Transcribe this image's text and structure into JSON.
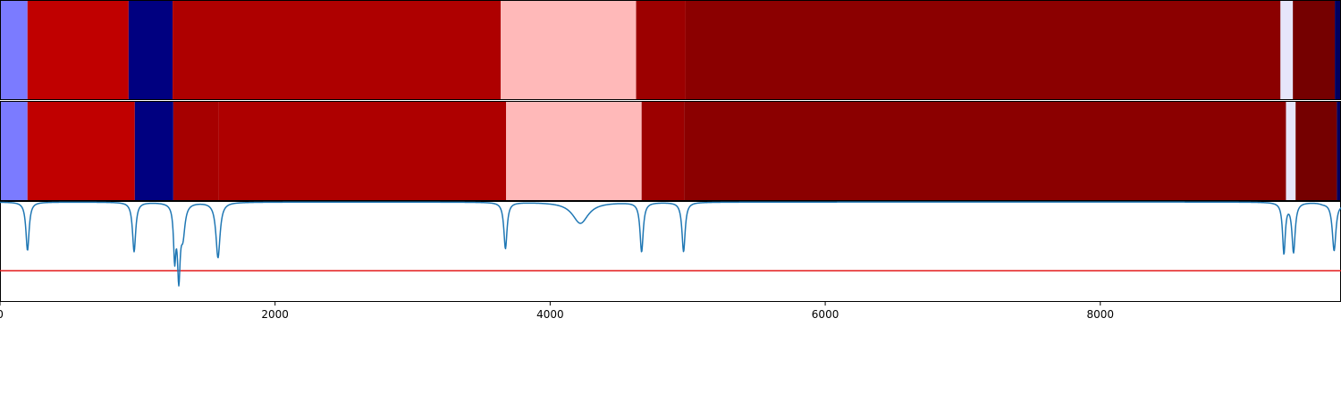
{
  "chart_data": {
    "type": "segmentation",
    "xlim": [
      0,
      9750
    ],
    "xticks": [
      0,
      2000,
      4000,
      6000,
      8000
    ],
    "xtick_labels": [
      "0",
      "2000",
      "4000",
      "6000",
      "8000"
    ],
    "panels": [
      {
        "type": "heatmap",
        "segments": [
          {
            "start": 0,
            "end": 200,
            "color": "#7b7bff"
          },
          {
            "start": 200,
            "end": 935,
            "color": "#c00000"
          },
          {
            "start": 935,
            "end": 1255,
            "color": "#000080"
          },
          {
            "start": 1255,
            "end": 3640,
            "color": "#ae0000"
          },
          {
            "start": 3640,
            "end": 4625,
            "color": "#ffb9b9"
          },
          {
            "start": 4625,
            "end": 4985,
            "color": "#9c0000"
          },
          {
            "start": 4985,
            "end": 9310,
            "color": "#8b0000"
          },
          {
            "start": 9310,
            "end": 9400,
            "color": "#e6e6fa"
          },
          {
            "start": 9400,
            "end": 9705,
            "color": "#750000"
          },
          {
            "start": 9705,
            "end": 9750,
            "color": "#000060"
          }
        ]
      },
      {
        "type": "heatmap",
        "segments": [
          {
            "start": 0,
            "end": 200,
            "color": "#7b7bff"
          },
          {
            "start": 200,
            "end": 980,
            "color": "#c00000"
          },
          {
            "start": 980,
            "end": 1260,
            "color": "#000080"
          },
          {
            "start": 1260,
            "end": 1590,
            "color": "#a60000"
          },
          {
            "start": 1590,
            "end": 3680,
            "color": "#ae0000"
          },
          {
            "start": 3680,
            "end": 4665,
            "color": "#ffb9b9"
          },
          {
            "start": 4665,
            "end": 4975,
            "color": "#9c0000"
          },
          {
            "start": 4975,
            "end": 9350,
            "color": "#8b0000"
          },
          {
            "start": 9350,
            "end": 9420,
            "color": "#e6e6fa"
          },
          {
            "start": 9420,
            "end": 9720,
            "color": "#750000"
          },
          {
            "start": 9720,
            "end": 9750,
            "color": "#000060"
          }
        ]
      },
      {
        "type": "line",
        "ylim": [
          0,
          1
        ],
        "line_color": "#1f77b4",
        "threshold": 0.31,
        "threshold_color": "#e41a1c",
        "baseline": 0.99,
        "dips": [
          {
            "x": 200,
            "y": 0.51,
            "width": 14
          },
          {
            "x": 975,
            "y": 0.5,
            "width": 14
          },
          {
            "x": 1270,
            "y": 0.48,
            "width": 10
          },
          {
            "x": 1300,
            "y": 0.29,
            "width": 12
          },
          {
            "x": 1330,
            "y": 0.7,
            "width": 18
          },
          {
            "x": 1585,
            "y": 0.44,
            "width": 18
          },
          {
            "x": 3675,
            "y": 0.53,
            "width": 14
          },
          {
            "x": 4220,
            "y": 0.78,
            "width": 70
          },
          {
            "x": 4665,
            "y": 0.5,
            "width": 14
          },
          {
            "x": 4970,
            "y": 0.5,
            "width": 14
          },
          {
            "x": 9335,
            "y": 0.49,
            "width": 12
          },
          {
            "x": 9405,
            "y": 0.5,
            "width": 14
          },
          {
            "x": 9620,
            "y": 0.98,
            "width": 30
          },
          {
            "x": 9700,
            "y": 0.51,
            "width": 16
          },
          {
            "x": 9745,
            "y": 0.98,
            "width": 10
          }
        ]
      }
    ]
  }
}
